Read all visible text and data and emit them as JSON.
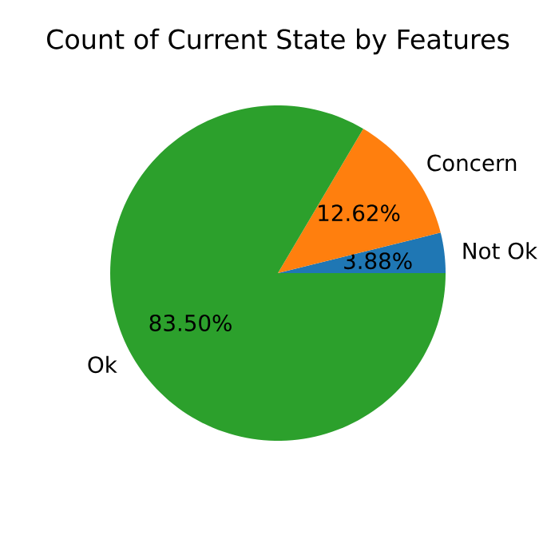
{
  "chart_data": {
    "type": "pie",
    "title": "Count of Current State by Features",
    "categories": [
      "Not Ok",
      "Concern",
      "Ok"
    ],
    "values": [
      3.88,
      12.62,
      83.5
    ],
    "value_labels": [
      "3.88%",
      "12.62%",
      "83.50%"
    ],
    "colors": [
      "#1f77b4",
      "#ff7f0e",
      "#2ca02c"
    ]
  }
}
